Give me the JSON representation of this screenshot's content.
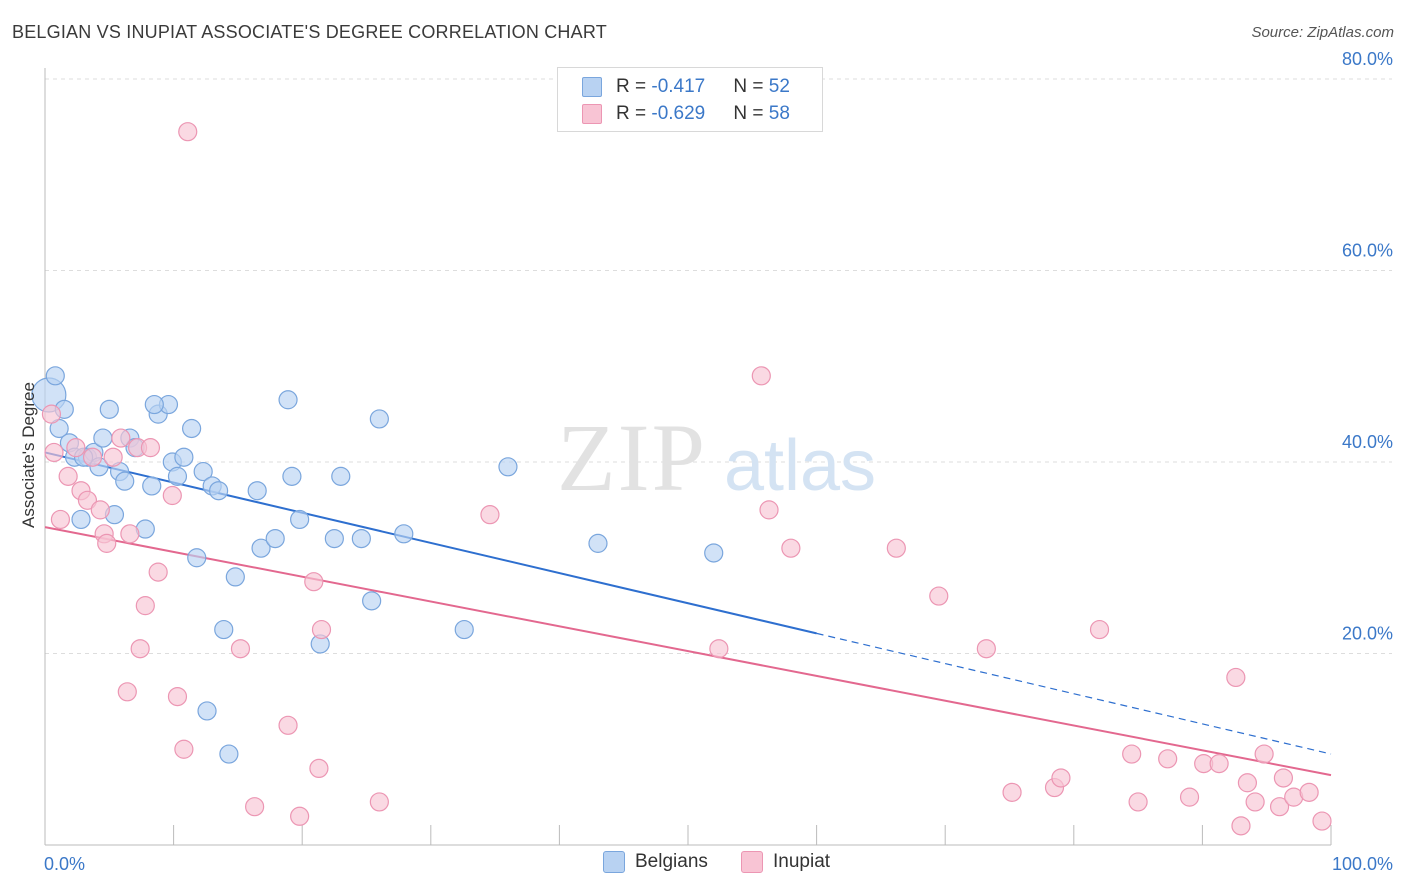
{
  "title": "BELGIAN VS INUPIAT ASSOCIATE'S DEGREE CORRELATION CHART",
  "source": "Source: ZipAtlas.com",
  "watermark": {
    "zip": "ZIP",
    "atlas": "atlas"
  },
  "legend": {
    "belgians": {
      "r_label": "R = ",
      "r_value": "-0.417",
      "n_label": "N = ",
      "n_value": "52",
      "name": "Belgians"
    },
    "inupiat": {
      "r_label": "R = ",
      "r_value": "-0.629",
      "n_label": "N = ",
      "n_value": "58",
      "name": "Inupiat"
    }
  },
  "colors": {
    "belgians_fill": "#b8d2f2",
    "belgians_stroke": "#7aa6dd",
    "belgians_line": "#2e6fcf",
    "inupiat_fill": "#f8c4d4",
    "inupiat_stroke": "#ec96b3",
    "inupiat_line": "#e3688f",
    "tick_label": "#3b78c8",
    "grid": "#dddddd"
  },
  "chart_data": {
    "type": "scatter",
    "title": "BELGIAN VS INUPIAT ASSOCIATE'S DEGREE CORRELATION CHART",
    "xlabel": "",
    "ylabel": "Associate's Degree",
    "xlim": [
      0,
      100
    ],
    "ylim": [
      0,
      80
    ],
    "x_tick_labels": [
      "0.0%",
      "100.0%"
    ],
    "y_ticks": [
      20,
      40,
      60,
      80
    ],
    "y_tick_labels": [
      "20.0%",
      "40.0%",
      "60.0%",
      "80.0%"
    ],
    "grid": true,
    "legend_position": "top-center",
    "series": [
      {
        "name": "Belgians",
        "r": -0.417,
        "n": 52,
        "trend": {
          "x": [
            0,
            100
          ],
          "y": [
            41.0,
            9.5
          ],
          "solid_until_x": 60
        },
        "points": [
          [
            0.3,
            47.0
          ],
          [
            0.8,
            49.0
          ],
          [
            1.1,
            43.5
          ],
          [
            1.5,
            45.5
          ],
          [
            1.9,
            42.0
          ],
          [
            2.3,
            40.5
          ],
          [
            2.8,
            34.0
          ],
          [
            3.3,
            40.5
          ],
          [
            3.8,
            41.0
          ],
          [
            4.2,
            39.5
          ],
          [
            4.5,
            42.5
          ],
          [
            5.0,
            45.5
          ],
          [
            5.4,
            34.5
          ],
          [
            5.8,
            39.0
          ],
          [
            6.2,
            38.0
          ],
          [
            6.6,
            42.5
          ],
          [
            7.0,
            41.5
          ],
          [
            7.8,
            33.0
          ],
          [
            8.3,
            37.5
          ],
          [
            8.8,
            45.0
          ],
          [
            9.6,
            46.0
          ],
          [
            9.9,
            40.0
          ],
          [
            10.3,
            38.5
          ],
          [
            10.8,
            40.5
          ],
          [
            11.4,
            43.5
          ],
          [
            11.8,
            30.0
          ],
          [
            12.3,
            39.0
          ],
          [
            12.6,
            14.0
          ],
          [
            13.0,
            37.5
          ],
          [
            13.5,
            37.0
          ],
          [
            13.9,
            22.5
          ],
          [
            14.3,
            9.5
          ],
          [
            14.8,
            28.0
          ],
          [
            16.5,
            37.0
          ],
          [
            16.8,
            31.0
          ],
          [
            17.9,
            32.0
          ],
          [
            18.9,
            46.5
          ],
          [
            19.2,
            38.5
          ],
          [
            19.8,
            34.0
          ],
          [
            21.4,
            21.0
          ],
          [
            22.5,
            32.0
          ],
          [
            23.0,
            38.5
          ],
          [
            24.6,
            32.0
          ],
          [
            25.4,
            25.5
          ],
          [
            26.0,
            44.5
          ],
          [
            27.9,
            32.5
          ],
          [
            32.6,
            22.5
          ],
          [
            36.0,
            39.5
          ],
          [
            43.0,
            31.5
          ],
          [
            52.0,
            30.5
          ],
          [
            8.5,
            46.0
          ],
          [
            3.0,
            40.5
          ]
        ]
      },
      {
        "name": "Inupiat",
        "r": -0.629,
        "n": 58,
        "trend": {
          "x": [
            0,
            100
          ],
          "y": [
            33.2,
            7.3
          ]
        },
        "points": [
          [
            0.5,
            45.0
          ],
          [
            0.7,
            41.0
          ],
          [
            1.2,
            34.0
          ],
          [
            1.8,
            38.5
          ],
          [
            2.4,
            41.5
          ],
          [
            2.8,
            37.0
          ],
          [
            3.3,
            36.0
          ],
          [
            3.7,
            40.5
          ],
          [
            4.3,
            35.0
          ],
          [
            4.6,
            32.5
          ],
          [
            4.8,
            31.5
          ],
          [
            5.3,
            40.5
          ],
          [
            5.9,
            42.5
          ],
          [
            6.4,
            16.0
          ],
          [
            6.6,
            32.5
          ],
          [
            7.2,
            41.5
          ],
          [
            7.4,
            20.5
          ],
          [
            7.8,
            25.0
          ],
          [
            8.2,
            41.5
          ],
          [
            8.8,
            28.5
          ],
          [
            9.9,
            36.5
          ],
          [
            10.3,
            15.5
          ],
          [
            10.8,
            10.0
          ],
          [
            11.1,
            74.5
          ],
          [
            15.2,
            20.5
          ],
          [
            16.3,
            4.0
          ],
          [
            18.9,
            12.5
          ],
          [
            19.8,
            3.0
          ],
          [
            20.9,
            27.5
          ],
          [
            21.3,
            8.0
          ],
          [
            21.5,
            22.5
          ],
          [
            26.0,
            4.5
          ],
          [
            34.6,
            34.5
          ],
          [
            52.4,
            20.5
          ],
          [
            55.7,
            49.0
          ],
          [
            56.3,
            35.0
          ],
          [
            58.0,
            31.0
          ],
          [
            66.2,
            31.0
          ],
          [
            69.5,
            26.0
          ],
          [
            73.2,
            20.5
          ],
          [
            75.2,
            5.5
          ],
          [
            78.5,
            6.0
          ],
          [
            79.0,
            7.0
          ],
          [
            82.0,
            22.5
          ],
          [
            84.5,
            9.5
          ],
          [
            85.0,
            4.5
          ],
          [
            87.3,
            9.0
          ],
          [
            89.0,
            5.0
          ],
          [
            90.1,
            8.5
          ],
          [
            91.3,
            8.5
          ],
          [
            92.6,
            17.5
          ],
          [
            93.0,
            2.0
          ],
          [
            93.5,
            6.5
          ],
          [
            94.1,
            4.5
          ],
          [
            94.8,
            9.5
          ],
          [
            96.0,
            4.0
          ],
          [
            96.3,
            7.0
          ],
          [
            97.1,
            5.0
          ],
          [
            98.3,
            5.5
          ],
          [
            99.3,
            2.5
          ]
        ]
      }
    ]
  }
}
